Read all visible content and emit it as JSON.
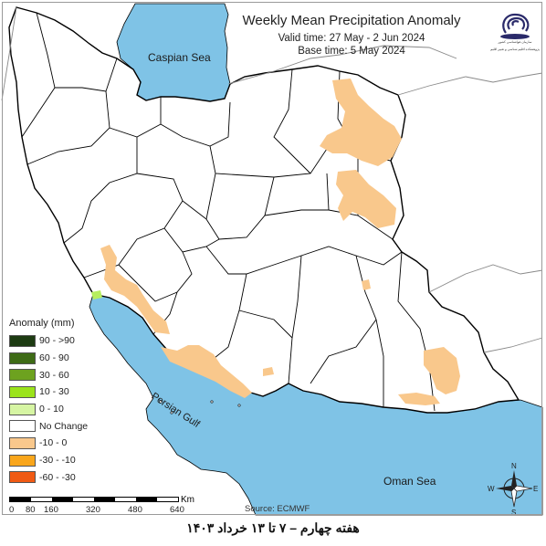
{
  "map": {
    "title": "Weekly Mean Precipitation Anomaly",
    "valid_time": "Valid time: 27 May - 2 Jun 2024",
    "base_time": "Base time: 5 May 2024",
    "source": "Source: ECMWF",
    "footer": "هفته چهارم – ۷ تا ۱۳ خرداد ۱۴۰۳",
    "labels": {
      "caspian": "Caspian Sea",
      "gulf": "Persian Gulf",
      "oman": "Oman Sea"
    },
    "compass": {
      "n": "N",
      "s": "S",
      "e": "E",
      "w": "W"
    },
    "colors": {
      "sea": "#7fc3e6",
      "land": "#ffffff",
      "border": "#000000",
      "anomaly_dry": "#f9c88c",
      "anomaly_wet": "#b6ee5e"
    }
  },
  "legend": {
    "title": "Anomaly (mm)",
    "items": [
      {
        "label": "90 - >90",
        "color": "#1d3b12"
      },
      {
        "label": "60 - 90",
        "color": "#3e6b16"
      },
      {
        "label": "30 - 60",
        "color": "#6da21f"
      },
      {
        "label": "10 - 30",
        "color": "#9be31b"
      },
      {
        "label": "0 - 10",
        "color": "#d6f5a3"
      },
      {
        "label": "No Change",
        "color": "#ffffff"
      },
      {
        "label": "-10 - 0",
        "color": "#f9c88c"
      },
      {
        "label": "-30 - -10",
        "color": "#f9a61c"
      },
      {
        "label": "-60 - -30",
        "color": "#f05a14"
      }
    ]
  },
  "scale": {
    "unit": "Km",
    "ticks": [
      "0",
      "80",
      "160",
      "320",
      "480",
      "640"
    ]
  },
  "logo": {
    "line1": "سازمان هواشناسی کشور",
    "line2": "پژوهشکده اقلیم شناسی و تغییر اقلیم"
  }
}
